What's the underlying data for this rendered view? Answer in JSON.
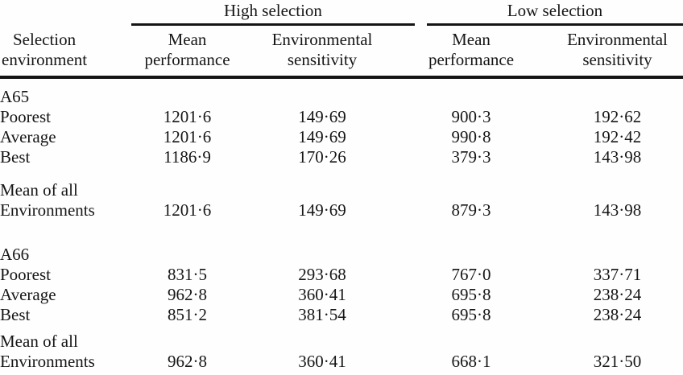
{
  "colors": {
    "background": "#fefefe",
    "ink": "#161616",
    "rule": "#141414"
  },
  "table": {
    "spanners": [
      {
        "label": "High selection"
      },
      {
        "label": "Low selection"
      }
    ],
    "stub_header": {
      "line1": "Selection",
      "line2": "environment"
    },
    "col_headers": [
      {
        "line1": "Mean",
        "line2": "performance"
      },
      {
        "line1": "Environmental",
        "line2": "sensitivity"
      },
      {
        "line1": "Mean",
        "line2": "performance"
      },
      {
        "line1": "Environmental",
        "line2": "sensitivity"
      }
    ],
    "sections": [
      {
        "label": "A65",
        "rows": [
          {
            "label": "Poorest",
            "values": [
              "1201·6",
              "149·69",
              "900·3",
              "192·62"
            ]
          },
          {
            "label": "Average",
            "values": [
              "1201·6",
              "149·69",
              "990·8",
              "192·42"
            ]
          },
          {
            "label": "Best",
            "values": [
              "1186·9",
              "170·26",
              "379·3",
              "143·98"
            ]
          }
        ],
        "mean_row": {
          "label_line1": "Mean of all",
          "label_line2": "Environments",
          "values": [
            "1201·6",
            "149·69",
            "879·3",
            "143·98"
          ]
        }
      },
      {
        "label": "A66",
        "rows": [
          {
            "label": "Poorest",
            "values": [
              "831·5",
              "293·68",
              "767·0",
              "337·71"
            ]
          },
          {
            "label": "Average",
            "values": [
              "962·8",
              "360·41",
              "695·8",
              "238·24"
            ]
          },
          {
            "label": "Best",
            "values": [
              "851·2",
              "381·54",
              "695·8",
              "238·24"
            ]
          }
        ],
        "mean_row": {
          "label_line1": "Mean of all",
          "label_line2": "Environments",
          "values": [
            "962·8",
            "360·41",
            "668·1",
            "321·50"
          ]
        }
      }
    ]
  }
}
